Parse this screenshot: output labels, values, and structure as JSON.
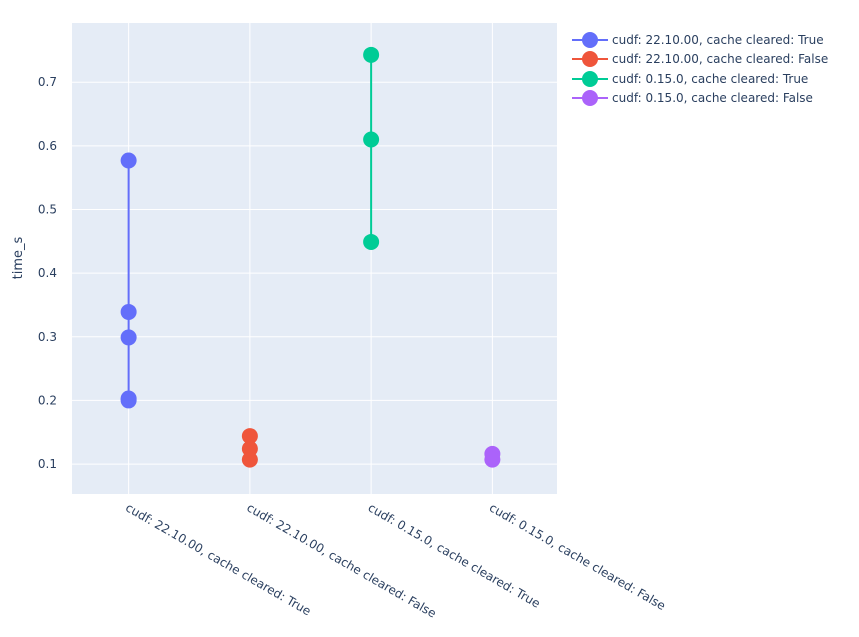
{
  "chart_data": {
    "type": "scatter",
    "mode": "lines+markers",
    "title": "",
    "xlabel": "",
    "ylabel": "time_s",
    "ylim": [
      0.053,
      0.793
    ],
    "yticks": [
      0.1,
      0.2,
      0.3,
      0.4,
      0.5,
      0.6,
      0.7
    ],
    "ytick_labels": [
      "0.1",
      "0.2",
      "0.3",
      "0.4",
      "0.5",
      "0.6",
      "0.7"
    ],
    "categories": [
      "cudf: 22.10.00, cache cleared: True",
      "cudf: 22.10.00, cache cleared: False",
      "cudf: 0.15.0, cache cleared: True",
      "cudf: 0.15.0, cache cleared: False"
    ],
    "grid": true,
    "legend_position": "right-top",
    "series": [
      {
        "name": "cudf: 22.10.00, cache cleared: True",
        "color": "#636efa",
        "x_index": 0,
        "values": [
          0.577,
          0.339,
          0.299,
          0.203,
          0.2
        ]
      },
      {
        "name": "cudf: 22.10.00, cache cleared: False",
        "color": "#ef553b",
        "x_index": 1,
        "values": [
          0.144,
          0.124,
          0.107
        ]
      },
      {
        "name": "cudf: 0.15.0, cache cleared: True",
        "color": "#00cc96",
        "x_index": 2,
        "values": [
          0.743,
          0.61,
          0.449
        ]
      },
      {
        "name": "cudf: 0.15.0, cache cleared: False",
        "color": "#ab63fa",
        "x_index": 3,
        "values": [
          0.116,
          0.107
        ]
      }
    ]
  },
  "legend": {
    "items": [
      {
        "label": "cudf: 22.10.00, cache cleared: True",
        "color": "#636efa"
      },
      {
        "label": "cudf: 22.10.00, cache cleared: False",
        "color": "#ef553b"
      },
      {
        "label": "cudf: 0.15.0, cache cleared: True",
        "color": "#00cc96"
      },
      {
        "label": "cudf: 0.15.0, cache cleared: False",
        "color": "#ab63fa"
      }
    ]
  },
  "style": {
    "plot_bg": "#e5ecf6",
    "grid_color": "#ffffff",
    "text_color": "#2a3f5f"
  }
}
